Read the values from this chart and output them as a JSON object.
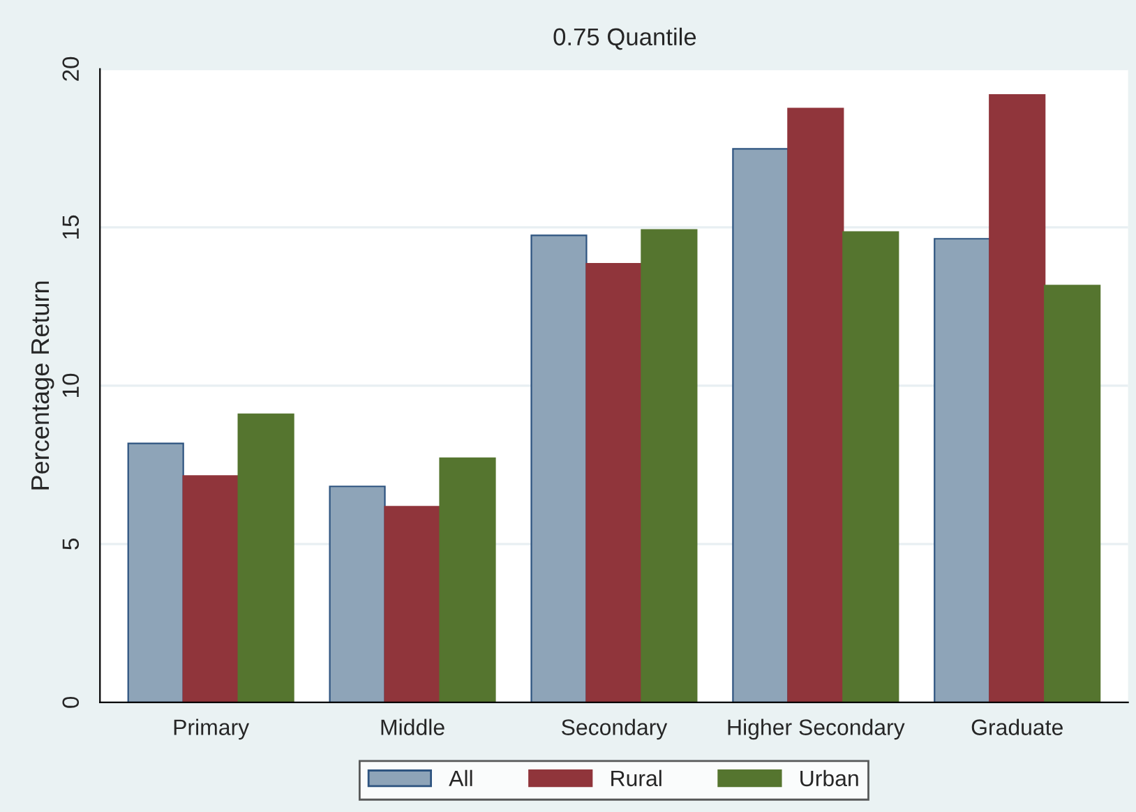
{
  "chart_data": {
    "type": "bar",
    "title": "0.75 Quantile",
    "ylabel": "Percentage Return",
    "categories": [
      "Primary",
      "Middle",
      "Secondary",
      "Higher Secondary",
      "Graduate"
    ],
    "series": [
      {
        "name": "All",
        "color": "#8ea4b8",
        "values": [
          8.18,
          6.82,
          14.75,
          17.48,
          14.64
        ]
      },
      {
        "name": "Rural",
        "color": "#90353b",
        "values": [
          7.15,
          6.18,
          13.85,
          18.75,
          19.18
        ]
      },
      {
        "name": "Urban",
        "color": "#55752f",
        "values": [
          9.1,
          7.71,
          14.92,
          14.85,
          13.16
        ]
      }
    ],
    "ylim": [
      0,
      20
    ],
    "yticks": [
      0,
      5,
      10,
      15,
      20
    ],
    "grid": "y",
    "legend": "bottom"
  }
}
